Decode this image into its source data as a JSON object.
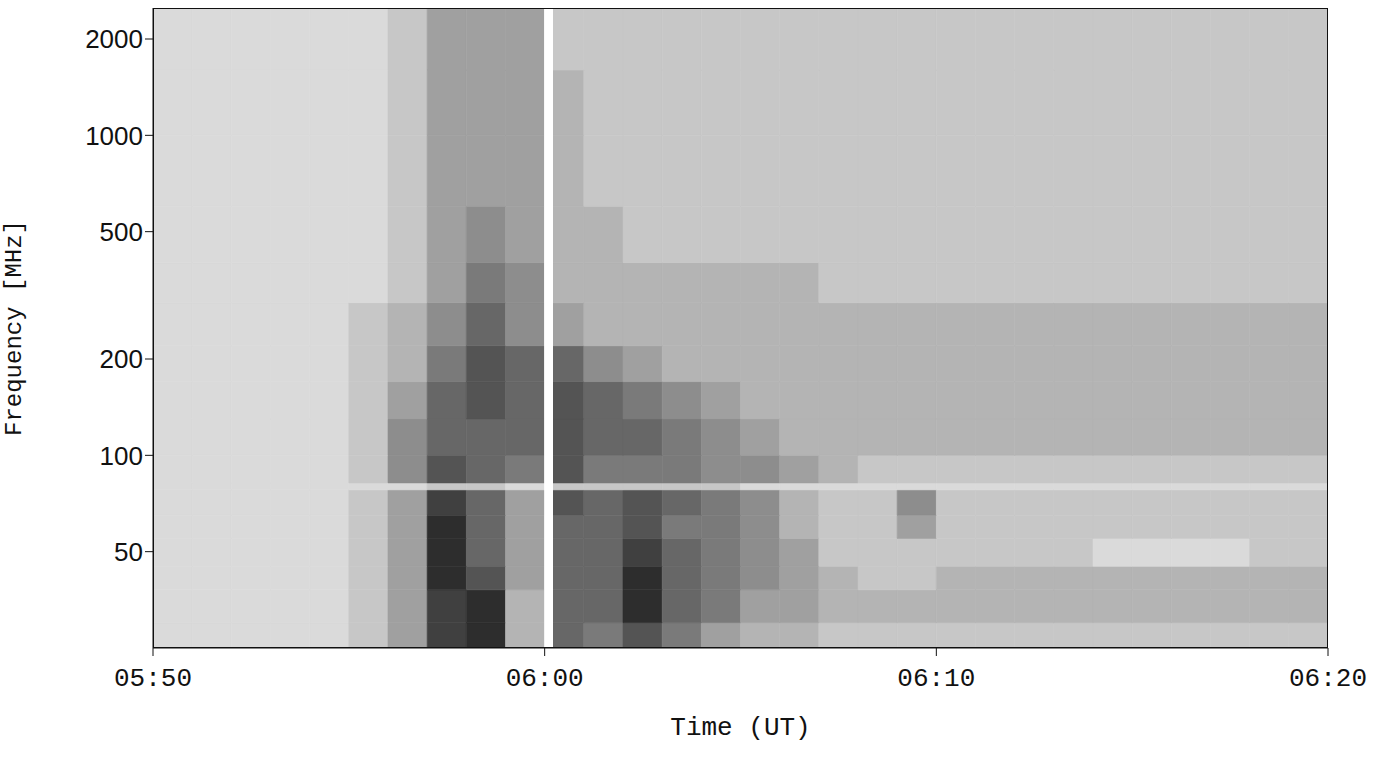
{
  "chart_data": {
    "type": "heatmap",
    "x_label": "Time (UT)",
    "y_label": "Frequency [MHz]",
    "log": "y",
    "xlim": [
      350,
      380
    ],
    "xticks": [
      {
        "value": 350,
        "label": "05:50"
      },
      {
        "value": 360,
        "label": "06:00"
      },
      {
        "value": 370,
        "label": "06:10"
      },
      {
        "value": 380,
        "label": "06:20"
      }
    ],
    "ylim": [
      25,
      2500
    ],
    "yticks": [
      50,
      100,
      200,
      500,
      1000,
      2000
    ],
    "gap": [
      360,
      360.2
    ],
    "cells": {
      "x_edges": [
        350,
        351,
        352,
        353,
        354,
        355,
        356,
        357,
        358,
        359,
        360,
        361,
        362,
        363,
        364,
        365,
        366,
        367,
        368,
        369,
        370,
        371,
        372,
        373,
        374,
        375,
        376,
        377,
        378,
        379,
        380
      ],
      "y_edges": [
        25,
        30,
        38,
        45,
        55,
        65,
        78,
        82,
        100,
        130,
        170,
        220,
        300,
        400,
        600,
        1000,
        1600,
        2500
      ],
      "range": [
        0,
        10
      ],
      "values": [
        [
          0,
          0,
          0,
          0,
          0,
          1,
          3,
          8,
          9,
          2,
          6,
          5,
          7,
          5,
          3,
          2,
          2,
          1,
          1,
          1,
          1,
          1,
          1,
          1,
          1,
          1,
          1,
          1,
          1,
          1
        ],
        [
          0,
          0,
          0,
          0,
          0,
          1,
          3,
          8,
          9,
          2,
          6,
          6,
          9,
          6,
          5,
          3,
          3,
          2,
          2,
          2,
          2,
          2,
          2,
          2,
          2,
          2,
          2,
          2,
          2,
          2
        ],
        [
          0,
          0,
          0,
          0,
          0,
          1,
          3,
          9,
          7,
          3,
          6,
          6,
          9,
          6,
          5,
          4,
          3,
          2,
          1,
          1,
          2,
          2,
          2,
          2,
          2,
          2,
          2,
          2,
          2,
          2
        ],
        [
          0,
          0,
          0,
          0,
          0,
          1,
          3,
          9,
          6,
          3,
          6,
          6,
          8,
          6,
          5,
          4,
          3,
          1,
          1,
          1,
          1,
          1,
          1,
          1,
          0,
          0,
          0,
          0,
          1,
          1
        ],
        [
          0,
          0,
          0,
          0,
          0,
          1,
          3,
          9,
          6,
          3,
          6,
          6,
          7,
          5,
          5,
          4,
          2,
          1,
          1,
          3,
          1,
          1,
          1,
          1,
          1,
          1,
          1,
          1,
          1,
          1
        ],
        [
          0,
          0,
          0,
          0,
          0,
          1,
          3,
          8,
          6,
          3,
          7,
          6,
          7,
          6,
          5,
          4,
          2,
          1,
          1,
          4,
          1,
          1,
          1,
          1,
          1,
          1,
          1,
          1,
          1,
          1
        ],
        [
          0,
          0,
          0,
          0,
          0,
          0,
          0,
          1,
          1,
          0,
          1,
          1,
          1,
          1,
          1,
          0,
          0,
          0,
          0,
          0,
          0,
          0,
          0,
          0,
          0,
          0,
          0,
          0,
          0,
          0
        ],
        [
          0,
          0,
          0,
          0,
          0,
          1,
          4,
          7,
          6,
          5,
          7,
          5,
          5,
          5,
          4,
          4,
          3,
          2,
          1,
          1,
          1,
          1,
          1,
          1,
          1,
          1,
          1,
          1,
          1,
          1
        ],
        [
          0,
          0,
          0,
          0,
          0,
          1,
          4,
          6,
          6,
          6,
          7,
          6,
          6,
          5,
          4,
          3,
          2,
          2,
          2,
          2,
          2,
          2,
          2,
          2,
          2,
          2,
          2,
          2,
          2,
          2
        ],
        [
          0,
          0,
          0,
          0,
          0,
          1,
          3,
          6,
          7,
          6,
          7,
          6,
          5,
          4,
          3,
          2,
          2,
          2,
          2,
          2,
          2,
          2,
          2,
          2,
          2,
          2,
          2,
          2,
          2,
          2
        ],
        [
          0,
          0,
          0,
          0,
          0,
          1,
          2,
          5,
          7,
          6,
          6,
          4,
          3,
          2,
          2,
          2,
          2,
          2,
          2,
          2,
          2,
          2,
          2,
          2,
          2,
          2,
          2,
          2,
          2,
          2
        ],
        [
          0,
          0,
          0,
          0,
          0,
          1,
          2,
          4,
          6,
          4,
          3,
          2,
          2,
          2,
          2,
          2,
          2,
          2,
          2,
          2,
          2,
          2,
          2,
          2,
          2,
          2,
          2,
          2,
          2,
          2
        ],
        [
          0,
          0,
          0,
          0,
          0,
          0,
          1,
          3,
          5,
          4,
          2,
          2,
          2,
          2,
          2,
          2,
          2,
          1,
          1,
          1,
          1,
          1,
          1,
          1,
          1,
          1,
          1,
          1,
          1,
          1
        ],
        [
          0,
          0,
          0,
          0,
          0,
          0,
          1,
          3,
          4,
          3,
          2,
          2,
          1,
          1,
          1,
          1,
          1,
          1,
          1,
          1,
          1,
          1,
          1,
          1,
          1,
          1,
          1,
          1,
          1,
          1
        ],
        [
          0,
          0,
          0,
          0,
          0,
          0,
          1,
          3,
          3,
          3,
          2,
          1,
          1,
          1,
          1,
          1,
          1,
          1,
          1,
          1,
          1,
          1,
          1,
          1,
          1,
          1,
          1,
          1,
          1,
          1
        ],
        [
          0,
          0,
          0,
          0,
          0,
          0,
          1,
          3,
          3,
          3,
          2,
          1,
          1,
          1,
          1,
          1,
          1,
          1,
          1,
          1,
          1,
          1,
          1,
          1,
          1,
          1,
          1,
          1,
          1,
          1
        ],
        [
          0,
          0,
          0,
          0,
          0,
          0,
          1,
          3,
          3,
          3,
          1,
          1,
          1,
          1,
          1,
          1,
          1,
          1,
          1,
          1,
          1,
          1,
          1,
          1,
          1,
          1,
          1,
          1,
          1,
          1
        ]
      ]
    }
  }
}
